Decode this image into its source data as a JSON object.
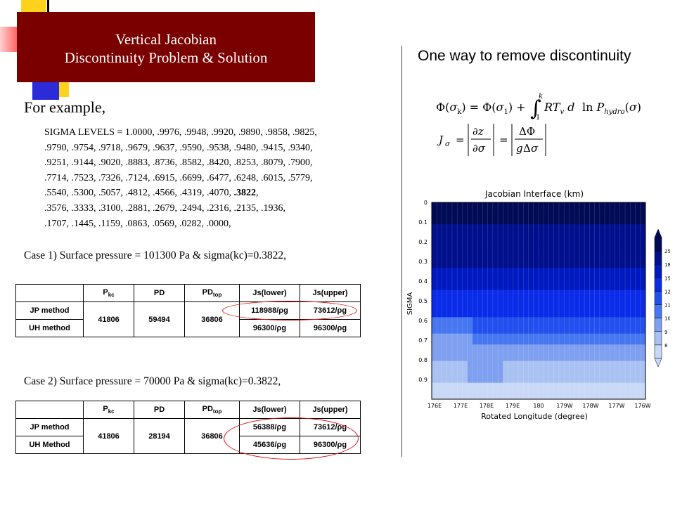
{
  "title": {
    "line1": "Vertical Jacobian",
    "line2": "Discontinuity Problem & Solution"
  },
  "right_heading": "One way to remove discontinuity",
  "for_example": "For example,",
  "sigma_levels": [
    "SIGMA LEVELS = 1.0000, .9976, .9948, .9920, .9890, .9858, .9825,",
    ".9790, .9754, .9718, .9679, .9637, .9590, .9538, .9480, .9415, .9340,",
    ".9251, .9144, .9020, .8883, .8736, .8582, .8420, .8253, .8079, .7900,",
    ".7714, .7523, .7326, .7124, .6915, .6699, .6477, .6248, .6015, .5779,",
    ".5540, .5300, .5057, .4812, .4566, .4319, .4070, ",
    ".3576, .3333, .3100, .2881, .2679, .2494, .2316, .2135, .1936,",
    ".1707, .1445, .1159, .0863, .0569, .0282, .0000,"
  ],
  "sigma_bold": ".3822",
  "sigma_bold_tail": ",",
  "case1": {
    "label": "Case 1) Surface pressure = 101300 Pa & sigma(kc)=0.3822,",
    "headers": {
      "pkc": "P",
      "pkc_sub": "kc",
      "pd": "PD",
      "pdtop": "PD",
      "pdtop_sub": "top",
      "js_lower": "Js(lower)",
      "js_upper": "Js(upper)"
    },
    "rows": [
      {
        "method": "JP method",
        "js_lower": "118988/ρg",
        "js_upper": "73612/ρg"
      },
      {
        "method": "UH method",
        "js_lower": "96300/ρg",
        "js_upper": "96300/ρg"
      }
    ],
    "pkc": "41806",
    "pd": "59494",
    "pdtop": "36806"
  },
  "case2": {
    "label": "Case 2) Surface pressure = 70000 Pa & sigma(kc)=0.3822,",
    "headers": {
      "pkc": "P",
      "pkc_sub": "kc",
      "pd": "PD",
      "pdtop": "PD",
      "pdtop_sub": "top",
      "js_lower": "Js(lower)",
      "js_upper": "Js(upper)"
    },
    "rows": [
      {
        "method": "JP method",
        "js_lower": "56388/ρg",
        "js_upper": "73612/ρg"
      },
      {
        "method": "UH Method",
        "js_lower": "45636/ρg",
        "js_upper": "96300/ρg"
      }
    ],
    "pkc": "41806",
    "pd": "28194",
    "pdtop": "36806"
  },
  "plot": {
    "title": "Jacobian Interface (km)",
    "ylabel": "SIGMA",
    "xlabel": "Rotated Longitude (degree)",
    "yticks": [
      "0",
      "0.1",
      "0.2",
      "0.3",
      "0.4",
      "0.5",
      "0.6",
      "0.7",
      "0.8",
      "0.9"
    ],
    "xticks": [
      "176E",
      "177E",
      "178E",
      "179E",
      "180",
      "179W",
      "178W",
      "177W",
      "176W"
    ],
    "colorbar": [
      "25",
      "18",
      "15",
      "12",
      "11",
      "10",
      "9",
      "8"
    ],
    "colors": [
      "#000a55",
      "#000f8c",
      "#0018c0",
      "#0a2ce8",
      "#2250ee",
      "#4676f0",
      "#7fa0f0",
      "#a9c2f2",
      "#c8d8f6"
    ]
  },
  "colors": {
    "title_bg": "#7a0000",
    "deco_yellow": "#ffd21e",
    "deco_blue": "#2b2bd8",
    "deco_red": "#ff4a4a",
    "circle": "#e01010"
  }
}
